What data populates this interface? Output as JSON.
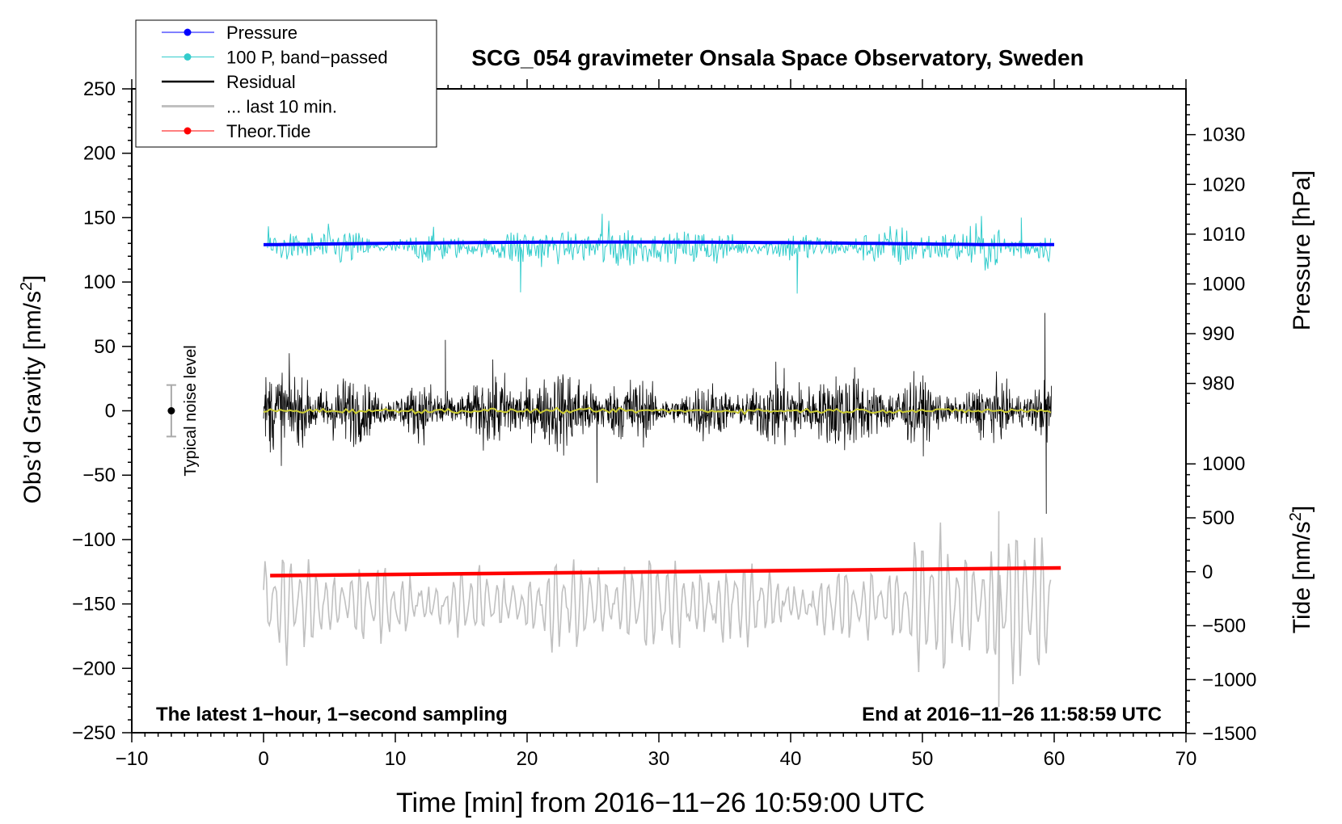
{
  "chart_data": {
    "type": "line",
    "title": "SCG_054 gravimeter Onsala Space Observatory, Sweden",
    "xlabel": "Time [min] from 2016−11−26 10:59:00 UTC",
    "ylabel_left_main": "Obs’d Gravity [nm/s",
    "ylabel_left_sup": "2",
    "ylabel_left_close": "]",
    "ylabel_right_pressure": "Pressure [hPa]",
    "ylabel_right_tide_main": "Tide [nm/s",
    "ylabel_right_tide_sup": "2",
    "ylabel_right_tide_close": "]",
    "xlim": [
      -10,
      70
    ],
    "ylim": [
      -250,
      250
    ],
    "x_ticks": [
      {
        "value": -10,
        "label": "−10"
      },
      {
        "value": 0,
        "label": "0"
      },
      {
        "value": 10,
        "label": "10"
      },
      {
        "value": 20,
        "label": "20"
      },
      {
        "value": 30,
        "label": "30"
      },
      {
        "value": 40,
        "label": "40"
      },
      {
        "value": 50,
        "label": "50"
      },
      {
        "value": 60,
        "label": "60"
      },
      {
        "value": 70,
        "label": "70"
      }
    ],
    "y_ticks": [
      {
        "value": 250,
        "label": "250"
      },
      {
        "value": 200,
        "label": "200"
      },
      {
        "value": 150,
        "label": "150"
      },
      {
        "value": 100,
        "label": "100"
      },
      {
        "value": 50,
        "label": "50"
      },
      {
        "value": 0,
        "label": "0"
      },
      {
        "value": -50,
        "label": "−50"
      },
      {
        "value": -100,
        "label": "−100"
      },
      {
        "value": -150,
        "label": "−150"
      },
      {
        "value": -200,
        "label": "−200"
      },
      {
        "value": -250,
        "label": "−250"
      }
    ],
    "pressure_axis": {
      "ticks": [
        {
          "value": 1030,
          "label": "1030"
        },
        {
          "value": 1020,
          "label": "1020"
        },
        {
          "value": 1010,
          "label": "1010"
        },
        {
          "value": 1000,
          "label": "1000"
        },
        {
          "value": 990,
          "label": "990"
        },
        {
          "value": 980,
          "label": "980"
        }
      ],
      "map": {
        "value_at_gravity_zero": 974.5,
        "hpa_per_gravity_unit": 0.2588
      }
    },
    "tide_axis": {
      "ticks": [
        {
          "value": 1000,
          "label": "1000"
        },
        {
          "value": 500,
          "label": "500"
        },
        {
          "value": 0,
          "label": "0"
        },
        {
          "value": -500,
          "label": "−500"
        },
        {
          "value": -1000,
          "label": "−1000"
        },
        {
          "value": -1500,
          "label": "−1500"
        }
      ],
      "map": {
        "gravity_at_tide_zero": -125,
        "tide_per_gravity_unit": 11.94
      }
    },
    "legend": {
      "position": "top-left",
      "entries": [
        {
          "label": "Pressure",
          "color": "#0000ff",
          "marker": true
        },
        {
          "label": "100 P, band−passed",
          "color": "#33cccc",
          "marker": true
        },
        {
          "label": "Residual",
          "color": "#000000",
          "marker": false
        },
        {
          "label": "... last 10 min.",
          "color": "#c0c0c0",
          "marker": false
        },
        {
          "label": "Theor.Tide",
          "color": "#ff0000",
          "marker": true
        }
      ]
    },
    "noise_indicator": {
      "label": "Typical noise level",
      "x": -7,
      "y": 0,
      "half_range": 20
    },
    "annotations": {
      "bottom_left": "The latest 1−hour, 1−second sampling",
      "bottom_right": "End at 2016−11−26 11:58:59 UTC"
    },
    "series": [
      {
        "name": "Pressure",
        "color": "#0000ff",
        "x_range": [
          0,
          60
        ],
        "y_start": 129,
        "y_mid": 131,
        "y_end": 129.5,
        "unit": "gravity-axis"
      },
      {
        "name": "100 P, band-passed",
        "color": "#33cccc",
        "center": 127,
        "typical_amplitude": 10,
        "max_spikes": [
          {
            "x": 19.5,
            "y": 92
          },
          {
            "x": 40.5,
            "y": 91
          },
          {
            "x": 25.7,
            "y": 153
          },
          {
            "x": 57.5,
            "y": 150
          }
        ]
      },
      {
        "name": "Residual",
        "color": "#000000",
        "center": 0,
        "typical_amplitude": 25,
        "extremes": [
          {
            "x": 59.3,
            "y": 76
          },
          {
            "x": 59.4,
            "y": -80
          },
          {
            "x": 13.8,
            "y": 55
          },
          {
            "x": 25.3,
            "y": -56
          }
        ]
      },
      {
        "name": "Residual smoothed",
        "color": "#cccc33",
        "center": 0
      },
      {
        "name": "... last 10 min.",
        "color": "#c0c0c0",
        "center": -150,
        "typical_amplitude": 25,
        "extremes": [
          {
            "x": 55.8,
            "y": -78
          },
          {
            "x": 55.8,
            "y": -230
          }
        ]
      },
      {
        "name": "Theor.Tide",
        "color": "#ff0000",
        "points": [
          {
            "x": 0.5,
            "y": -128
          },
          {
            "x": 60.5,
            "y": -122
          }
        ]
      }
    ]
  }
}
